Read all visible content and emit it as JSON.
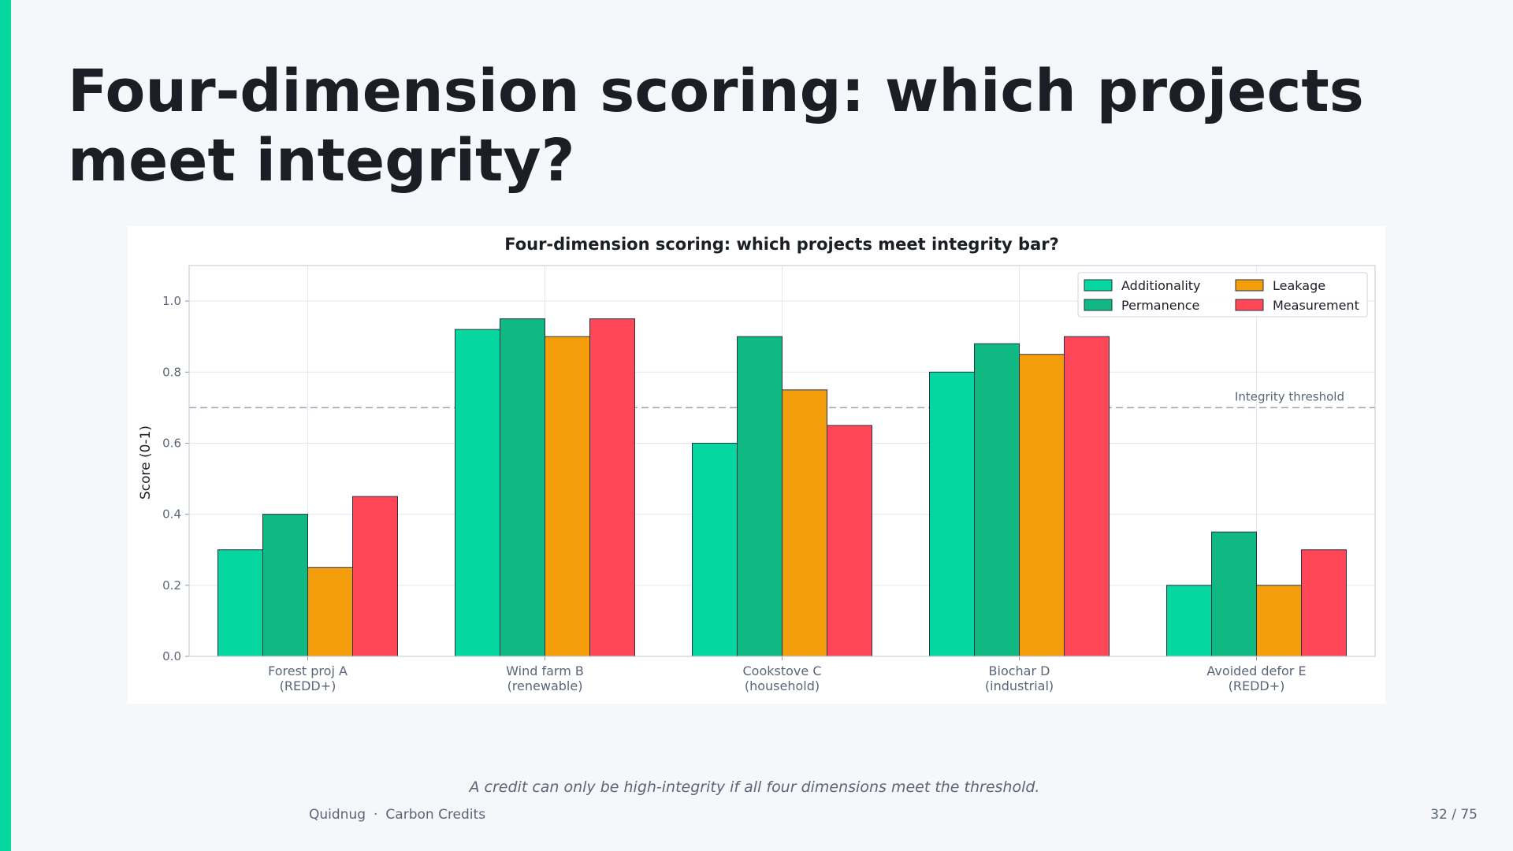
{
  "slide": {
    "title": "Four-dimension scoring: which projects meet integrity?",
    "caption": "A credit can only be high-integrity if all four dimensions meet the threshold.",
    "footer": {
      "brand": "Quidnug",
      "separator": "·",
      "section": "Carbon Credits",
      "page": "32 / 75"
    },
    "colors": {
      "background": "#f5f7fa",
      "accent": "#06d6a0",
      "title": "#1b1e25"
    }
  },
  "chart_data": {
    "type": "bar",
    "title": "Four-dimension scoring: which projects meet integrity bar?",
    "ylabel": "Score (0-1)",
    "xlabel": "",
    "ylim": [
      0,
      1.1
    ],
    "yticks": [
      "0.0",
      "0.2",
      "0.4",
      "0.6",
      "0.8",
      "1.0"
    ],
    "grid": true,
    "legend_position": "top-right",
    "categories": [
      [
        "Forest proj A",
        "(REDD+)"
      ],
      [
        "Wind farm B",
        "(renewable)"
      ],
      [
        "Cookstove C",
        "(household)"
      ],
      [
        "Biochar D",
        "(industrial)"
      ],
      [
        "Avoided defor E",
        "(REDD+)"
      ]
    ],
    "series": [
      {
        "name": "Additionality",
        "color": "#06d6a0",
        "values": [
          0.3,
          0.92,
          0.6,
          0.8,
          0.2
        ]
      },
      {
        "name": "Permanence",
        "color": "#10b981",
        "values": [
          0.4,
          0.95,
          0.9,
          0.88,
          0.35
        ]
      },
      {
        "name": "Leakage",
        "color": "#f59e0b",
        "values": [
          0.25,
          0.9,
          0.75,
          0.85,
          0.2
        ]
      },
      {
        "name": "Measurement",
        "color": "#ff4757",
        "values": [
          0.45,
          0.95,
          0.65,
          0.9,
          0.3
        ]
      }
    ],
    "threshold": {
      "value": 0.7,
      "label": "Integrity threshold"
    }
  }
}
